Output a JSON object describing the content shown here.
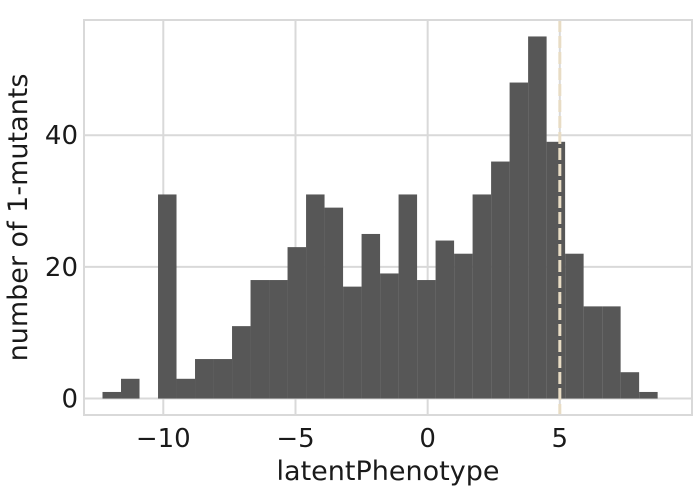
{
  "chart_data": {
    "type": "bar",
    "title": "",
    "xlabel": "latentPhenotype",
    "ylabel": "number of 1-mutants",
    "xlim": [
      -13.0,
      10.0
    ],
    "ylim": [
      -2.5,
      57.5
    ],
    "xticks": [
      -10,
      -5,
      0,
      5
    ],
    "xtick_labels": [
      "−10",
      "−5",
      "0",
      "5"
    ],
    "yticks": [
      0,
      20,
      40
    ],
    "ytick_labels": [
      "0",
      "20",
      "40"
    ],
    "grid": true,
    "bin_width": 0.7,
    "bins": [
      {
        "x0": -12.3,
        "count": 1
      },
      {
        "x0": -11.6,
        "count": 3
      },
      {
        "x0": -10.2,
        "count": 31
      },
      {
        "x0": -9.5,
        "count": 3
      },
      {
        "x0": -8.8,
        "count": 6
      },
      {
        "x0": -8.1,
        "count": 6
      },
      {
        "x0": -7.4,
        "count": 11
      },
      {
        "x0": -6.7,
        "count": 18
      },
      {
        "x0": -6.0,
        "count": 18
      },
      {
        "x0": -5.3,
        "count": 23
      },
      {
        "x0": -4.6,
        "count": 31
      },
      {
        "x0": -3.9,
        "count": 29
      },
      {
        "x0": -3.2,
        "count": 17
      },
      {
        "x0": -2.5,
        "count": 25
      },
      {
        "x0": -1.8,
        "count": 19
      },
      {
        "x0": -1.1,
        "count": 31
      },
      {
        "x0": -0.4,
        "count": 18
      },
      {
        "x0": 0.3,
        "count": 24
      },
      {
        "x0": 1.0,
        "count": 22
      },
      {
        "x0": 1.7,
        "count": 31
      },
      {
        "x0": 2.4,
        "count": 36
      },
      {
        "x0": 3.1,
        "count": 48
      },
      {
        "x0": 3.8,
        "count": 55
      },
      {
        "x0": 4.5,
        "count": 39
      },
      {
        "x0": 5.2,
        "count": 22
      },
      {
        "x0": 5.9,
        "count": 14
      },
      {
        "x0": 6.6,
        "count": 14
      },
      {
        "x0": 7.3,
        "count": 4
      },
      {
        "x0": 8.0,
        "count": 1
      }
    ],
    "reference_line": {
      "x": 5.0,
      "style": "dashed"
    },
    "colors": {
      "bars": "#575757",
      "grid": "#d9d9d9",
      "frame": "#d9d9d9",
      "reference_line": "#e8dcc4",
      "text": "#1a1a1a"
    }
  }
}
